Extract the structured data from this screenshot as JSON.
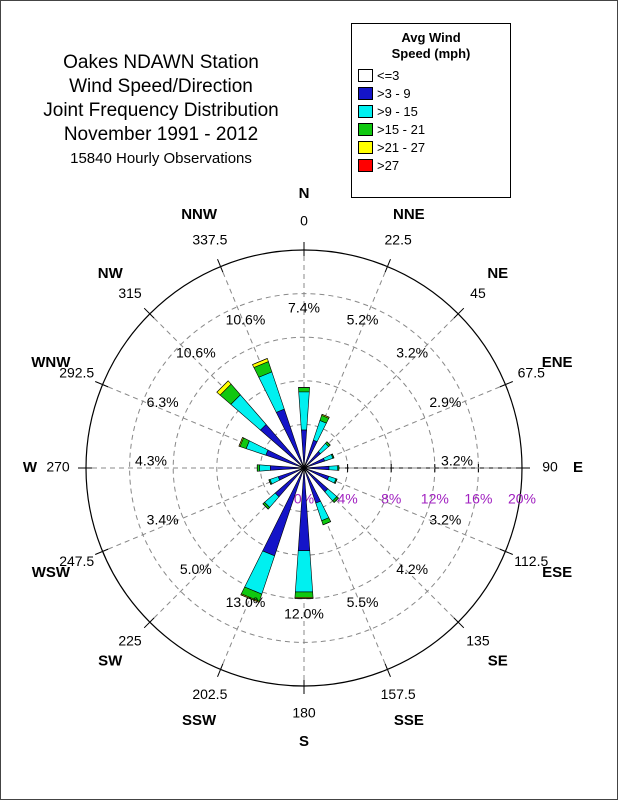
{
  "chart_data": {
    "type": "windrose",
    "title": [
      "Oakes NDAWN Station",
      "Wind Speed/Direction",
      "Joint Frequency Distribution",
      "November 1991 - 2012"
    ],
    "subtitle": "15840 Hourly Observations",
    "legend_title": "Avg Wind Speed (mph)",
    "categories": [
      "N",
      "NNE",
      "NE",
      "ENE",
      "E",
      "ESE",
      "SE",
      "SSE",
      "S",
      "SSW",
      "SW",
      "WSW",
      "W",
      "WNW",
      "NW",
      "NNW"
    ],
    "angles": [
      0,
      22.5,
      45,
      67.5,
      90,
      112.5,
      135,
      157.5,
      180,
      202.5,
      225,
      247.5,
      270,
      292.5,
      315,
      337.5
    ],
    "totals": [
      {
        "value": 7.4,
        "label": "7.4%"
      },
      {
        "value": 5.2,
        "label": "5.2%"
      },
      {
        "value": 3.2,
        "label": "3.2%"
      },
      {
        "value": 2.9,
        "label": "2.9%"
      },
      {
        "value": 3.2,
        "label": "3.2%"
      },
      {
        "value": 3.2,
        "label": "3.2%"
      },
      {
        "value": 4.2,
        "label": "4.2%"
      },
      {
        "value": 5.5,
        "label": "5.5%"
      },
      {
        "value": 12.0,
        "label": "12.0%"
      },
      {
        "value": 13.0,
        "label": "13.0%"
      },
      {
        "value": 5.0,
        "label": "5.0%"
      },
      {
        "value": 3.4,
        "label": "3.4%"
      },
      {
        "value": 4.3,
        "label": "4.3%"
      },
      {
        "value": 6.3,
        "label": "6.3%"
      },
      {
        "value": 10.6,
        "label": "10.6%"
      },
      {
        "value": 10.6,
        "label": "10.6%"
      }
    ],
    "series": [
      {
        "name": "<=3",
        "color": "#ffffff",
        "values": [
          0.1,
          0.1,
          0.1,
          0.1,
          0.1,
          0.1,
          0.1,
          0.1,
          0.1,
          0.1,
          0.1,
          0.1,
          0.1,
          0.1,
          0.1,
          0.1
        ]
      },
      {
        "name": ">3 - 9",
        "color": "#1414c8",
        "values": [
          3.4,
          2.6,
          1.9,
          1.9,
          2.2,
          2.3,
          2.8,
          3.3,
          7.5,
          8.4,
          3.4,
          2.4,
          3.0,
          3.6,
          5.2,
          5.6
        ]
      },
      {
        "name": ">9 - 15",
        "color": "#00f0f0",
        "values": [
          3.5,
          1.9,
          1.0,
          0.8,
          0.8,
          0.7,
          1.1,
          1.7,
          3.8,
          3.7,
          1.3,
          0.8,
          1.0,
          1.9,
          3.6,
          3.6
        ]
      },
      {
        "name": ">15 - 21",
        "color": "#10c810",
        "values": [
          0.4,
          0.5,
          0.2,
          0.1,
          0.1,
          0.1,
          0.2,
          0.4,
          0.5,
          0.7,
          0.2,
          0.1,
          0.2,
          0.6,
          1.3,
          1.0
        ]
      },
      {
        "name": ">21 - 27",
        "color": "#ffff00",
        "values": [
          0,
          0.1,
          0,
          0,
          0,
          0,
          0,
          0,
          0.1,
          0.1,
          0,
          0,
          0,
          0.1,
          0.4,
          0.3
        ]
      },
      {
        "name": ">27",
        "color": "#ff0000",
        "values": [
          0,
          0,
          0,
          0,
          0,
          0,
          0,
          0,
          0,
          0,
          0,
          0,
          0,
          0,
          0,
          0
        ]
      }
    ],
    "rlim": [
      0,
      20
    ],
    "rticks": [
      {
        "value": 0,
        "label": "0%"
      },
      {
        "value": 4,
        "label": "4%"
      },
      {
        "value": 8,
        "label": "8%"
      },
      {
        "value": 12,
        "label": "12%"
      },
      {
        "value": 16,
        "label": "16%"
      },
      {
        "value": 20,
        "label": "20%"
      }
    ],
    "rtick_color": "#a020c0",
    "grid": true
  }
}
